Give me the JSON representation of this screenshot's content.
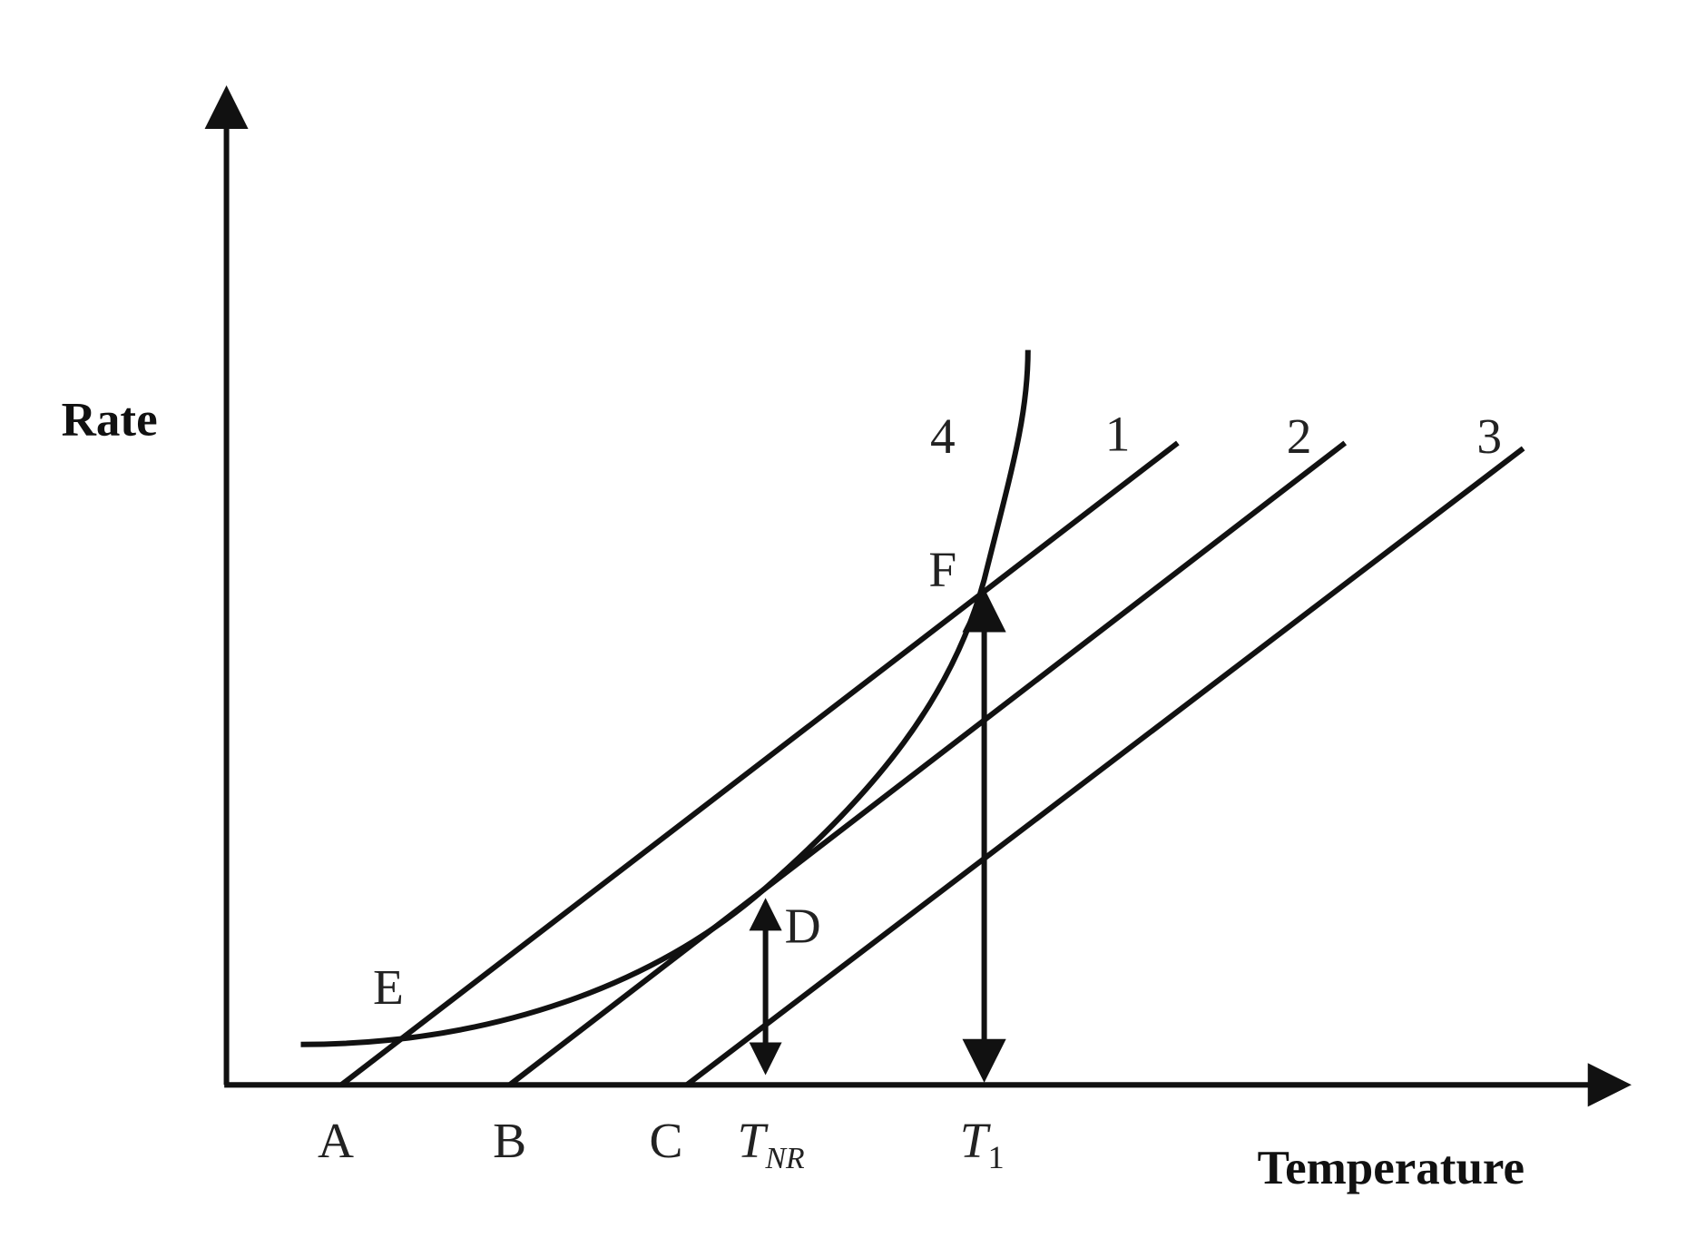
{
  "axes": {
    "y_label": "Rate",
    "x_label": "Temperature"
  },
  "curves": [
    {
      "label": "1"
    },
    {
      "label": "2"
    },
    {
      "label": "3"
    },
    {
      "label": "4"
    }
  ],
  "points": [
    {
      "label": "A"
    },
    {
      "label": "B"
    },
    {
      "label": "C"
    },
    {
      "label": "D"
    },
    {
      "label": "E"
    },
    {
      "label": "F"
    }
  ],
  "temperatures": [
    {
      "base": "T",
      "sub": "NR"
    },
    {
      "base": "T",
      "sub": "1"
    }
  ]
}
